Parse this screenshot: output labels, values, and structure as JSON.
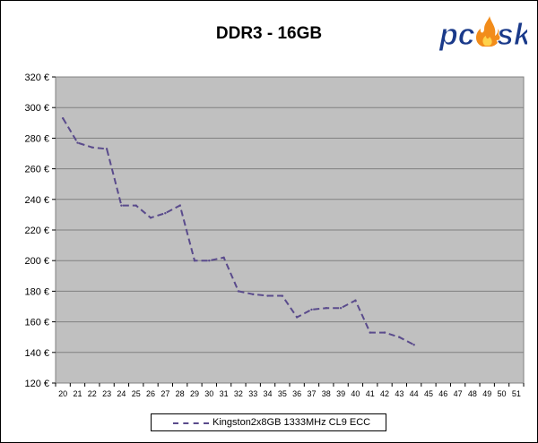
{
  "chart_data": {
    "type": "line",
    "title": "DDR3 - 16GB",
    "xlabel": "",
    "ylabel": "",
    "x_categories": [
      "20",
      "21",
      "22",
      "23",
      "24",
      "25",
      "26",
      "27",
      "28",
      "29",
      "30",
      "31",
      "32",
      "33",
      "34",
      "35",
      "36",
      "37",
      "38",
      "39",
      "40",
      "41",
      "42",
      "43",
      "44",
      "45",
      "46",
      "47",
      "48",
      "49",
      "50",
      "51"
    ],
    "y_tick_labels": [
      "120 €",
      "140 €",
      "160 €",
      "180 €",
      "200 €",
      "220 €",
      "240 €",
      "260 €",
      "280 €",
      "300 €",
      "320 €"
    ],
    "ylim": [
      120,
      320
    ],
    "grid": true,
    "legend_position": "bottom",
    "series": [
      {
        "name": "Kingston2x8GB 1333MHz CL9 ECC",
        "color": "#5a4b8c",
        "x": [
          20,
          21,
          22,
          23,
          24,
          25,
          26,
          27,
          28,
          29,
          30,
          31,
          32,
          33,
          34,
          35,
          36,
          37,
          38,
          39,
          40,
          41,
          42,
          43,
          44
        ],
        "values": [
          293,
          277,
          274,
          273,
          236,
          236,
          228,
          231,
          236,
          200,
          200,
          202,
          180,
          178,
          177,
          177,
          163,
          168,
          169,
          169,
          174,
          153,
          153,
          150,
          145
        ]
      }
    ],
    "plot_background": "#c0c0c0"
  },
  "logo": {
    "text": "pcask",
    "colors": {
      "primary": "#1a3a8a",
      "flame": "#f28c1a"
    }
  }
}
